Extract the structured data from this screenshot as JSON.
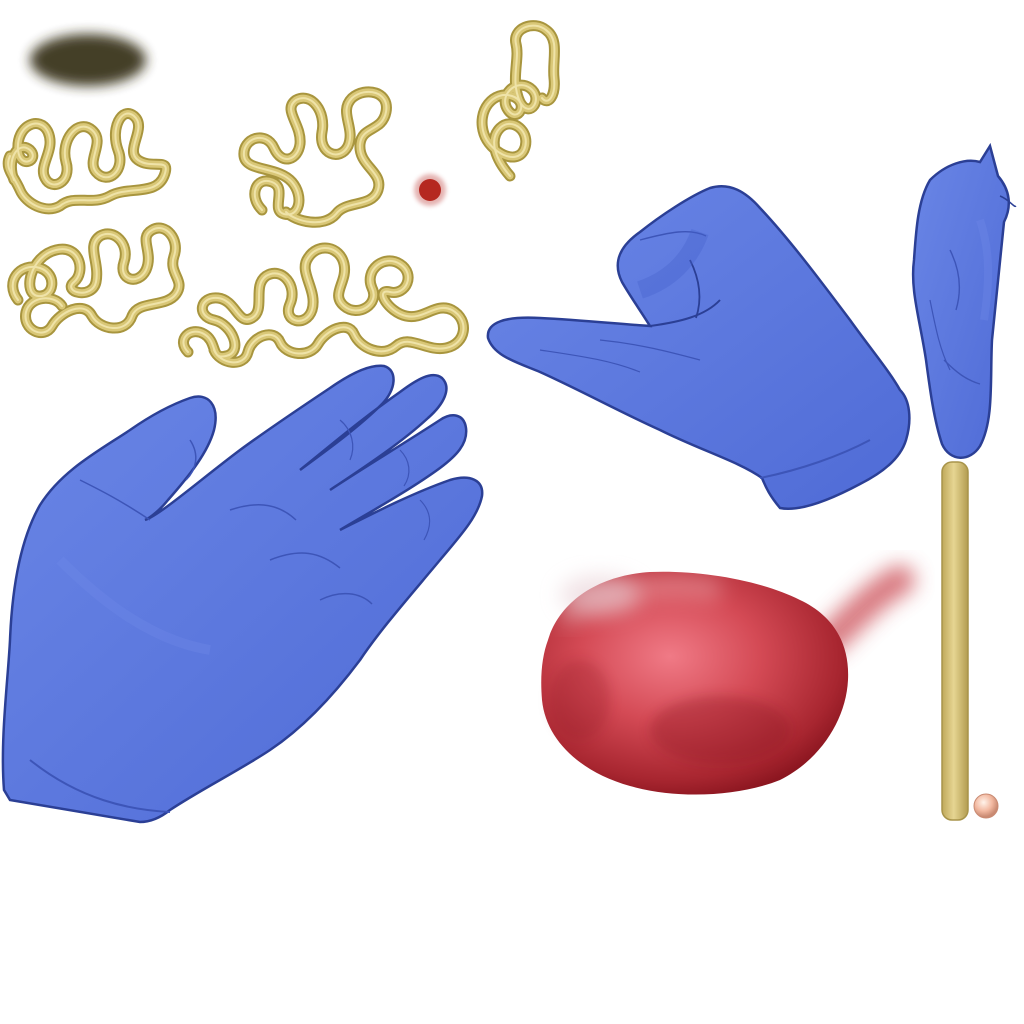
{
  "sheet": {
    "type": "sprite-atlas",
    "background": "#ffffff"
  },
  "colors": {
    "glove_fill": "#5b78dd",
    "glove_shade": "#4560cc",
    "glove_outline": "#2b3f95",
    "glove_crease": "#3d55b8",
    "worm_outer": "#a8953e",
    "worm_inner": "#d9c777",
    "worm_highlight": "#efe3a8",
    "organ_light": "#f07a86",
    "organ_mid": "#c8404a",
    "organ_dark": "#8c1620",
    "dot_red": "#b52820",
    "stick": "#d8c47a",
    "stick_edge": "#a8944a",
    "bead": "#f2b8a0",
    "smudge": "#3a361c"
  },
  "sprites": [
    {
      "name": "dark-smudge",
      "icon": "smudge"
    },
    {
      "name": "worm-cluster-1",
      "icon": "worm"
    },
    {
      "name": "worm-cluster-2",
      "icon": "worm"
    },
    {
      "name": "worm-single",
      "icon": "worm"
    },
    {
      "name": "worm-cluster-3",
      "icon": "worm"
    },
    {
      "name": "worm-cluster-4",
      "icon": "worm"
    },
    {
      "name": "red-dot",
      "icon": "droplet"
    },
    {
      "name": "glove-hand-open",
      "icon": "glove"
    },
    {
      "name": "glove-hand-pinch",
      "icon": "glove"
    },
    {
      "name": "glove-hand-folded",
      "icon": "glove"
    },
    {
      "name": "swab-stick",
      "icon": "stick"
    },
    {
      "name": "red-organ",
      "icon": "organ"
    },
    {
      "name": "small-bead",
      "icon": "bead"
    }
  ]
}
